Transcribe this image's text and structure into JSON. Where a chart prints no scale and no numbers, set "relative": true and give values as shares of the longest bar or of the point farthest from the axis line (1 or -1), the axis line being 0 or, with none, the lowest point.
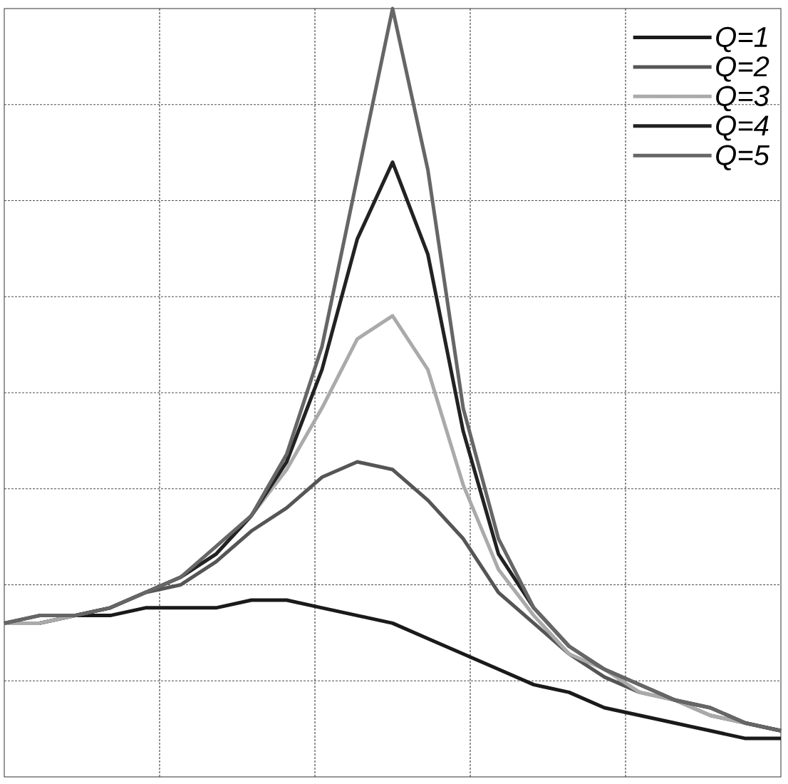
{
  "chart_data": {
    "type": "line",
    "relative": true,
    "grid": true,
    "tick_labels": false,
    "legend": "top right",
    "categories": [
      null,
      null,
      null,
      null,
      null,
      null,
      null,
      null,
      null,
      null,
      null,
      null,
      null,
      null,
      null,
      null,
      null,
      null,
      null,
      null,
      null,
      null,
      null
    ],
    "series": [
      {
        "name": "Q=1",
        "color": "#1a1a1a",
        "values": [
          0.2,
          0.2,
          0.21,
          0.21,
          0.22,
          0.22,
          0.22,
          0.23,
          0.23,
          0.22,
          0.21,
          0.2,
          0.18,
          0.16,
          0.14,
          0.12,
          0.11,
          0.09,
          0.08,
          0.07,
          0.06,
          0.05,
          0.05
        ]
      },
      {
        "name": "Q=2",
        "color": "#555555",
        "values": [
          0.2,
          0.2,
          0.21,
          0.22,
          0.24,
          0.25,
          0.28,
          0.32,
          0.35,
          0.39,
          0.41,
          0.4,
          0.36,
          0.31,
          0.24,
          0.2,
          0.16,
          0.13,
          0.11,
          0.1,
          0.08,
          0.07,
          0.06
        ]
      },
      {
        "name": "Q=3",
        "color": "#aaaaaa",
        "values": [
          0.2,
          0.2,
          0.21,
          0.22,
          0.24,
          0.26,
          0.29,
          0.34,
          0.4,
          0.48,
          0.57,
          0.6,
          0.53,
          0.38,
          0.27,
          0.21,
          0.16,
          0.14,
          0.11,
          0.1,
          0.08,
          0.07,
          0.06
        ]
      },
      {
        "name": "Q=4",
        "color": "#222222",
        "values": [
          0.2,
          0.21,
          0.21,
          0.22,
          0.24,
          0.26,
          0.29,
          0.34,
          0.41,
          0.53,
          0.7,
          0.8,
          0.68,
          0.45,
          0.29,
          0.22,
          0.17,
          0.14,
          0.12,
          0.1,
          0.09,
          0.07,
          0.06
        ]
      },
      {
        "name": "Q=5",
        "color": "#666666",
        "values": [
          0.2,
          0.21,
          0.21,
          0.22,
          0.24,
          0.26,
          0.3,
          0.34,
          0.42,
          0.56,
          0.78,
          1.0,
          0.79,
          0.48,
          0.31,
          0.22,
          0.17,
          0.14,
          0.12,
          0.1,
          0.09,
          0.07,
          0.06
        ]
      }
    ]
  }
}
